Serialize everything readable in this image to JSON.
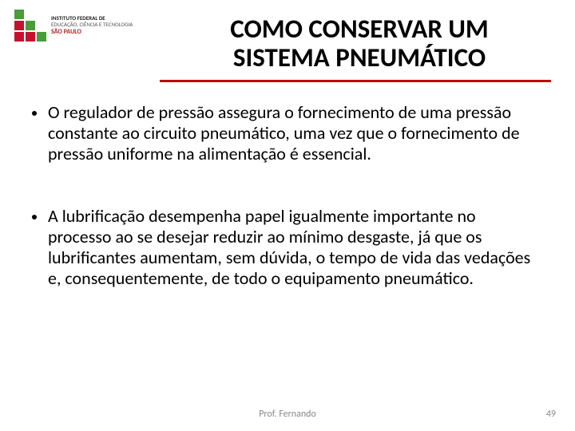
{
  "logo": {
    "squares": [
      {
        "color": "#4a9b3a"
      },
      {
        "color": "transparent"
      },
      {
        "color": "transparent"
      },
      {
        "color": "#c8102e"
      },
      {
        "color": "#4a9b3a"
      },
      {
        "color": "transparent"
      },
      {
        "color": "#c8102e"
      },
      {
        "color": "#c8102e"
      },
      {
        "color": "#4a9b3a"
      }
    ],
    "line1": "INSTITUTO FEDERAL DE",
    "line2": "EDUCAÇÃO, CIÊNCIA E TECNOLOGIA",
    "state": "SÃO PAULO"
  },
  "title": {
    "line1": "COMO CONSERVAR UM",
    "line2": "SISTEMA PNEUMÁTICO",
    "underline_color": "#c00000"
  },
  "bullets": [
    "O regulador de pressão assegura o fornecimento de uma pressão constante ao circuito pneumático, uma vez que o fornecimento de pressão uniforme na alimentação é essencial.",
    "A lubrificação desempenha papel igualmente importante no processo ao se desejar reduzir ao mínimo desgaste, já que os lubrificantes aumentam, sem dúvida, o tempo de vida das vedações e, consequentemente, de todo o equipamento pneumático."
  ],
  "footer": {
    "author": "Prof. Fernando",
    "page": "49"
  },
  "style": {
    "title_fontsize": 33,
    "body_fontsize": 22,
    "footer_fontsize": 12,
    "footer_color": "#888888",
    "text_color": "#000000",
    "background": "#ffffff"
  }
}
